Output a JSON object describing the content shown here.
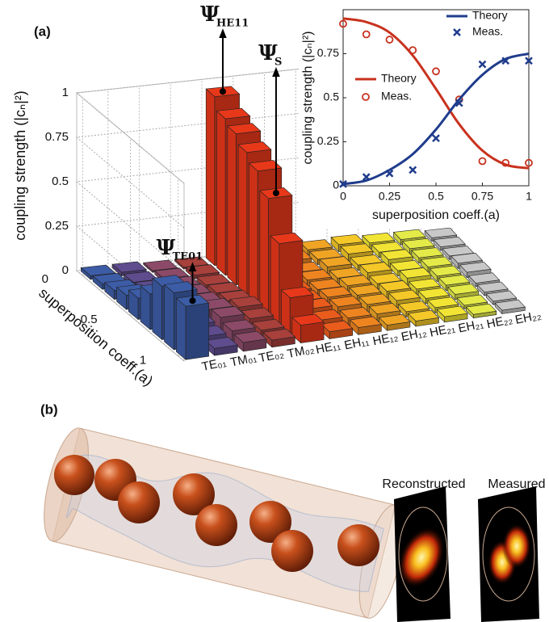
{
  "chart_data": [
    {
      "type": "bar3d",
      "panel_label": "(a)",
      "categories": [
        "TE₀₁",
        "TM₀₁",
        "TE₀₂",
        "TM₀₂",
        "HE₁₁",
        "EH₁₁",
        "HE₁₂",
        "EH₁₂",
        "HE₂₁",
        "EH₂₁",
        "HE₂₂",
        "EH₂₂"
      ],
      "colors": [
        "#3c5ca6",
        "#5e4c8e",
        "#8c4a68",
        "#a8403c",
        "#e8381a",
        "#ea5c1c",
        "#ee8420",
        "#f0a424",
        "#f4c828",
        "#f2e434",
        "#e4ea48",
        "#c8c8c8"
      ],
      "y": [
        0,
        0.125,
        0.25,
        0.375,
        0.5,
        0.625,
        0.75,
        0.875,
        1
      ],
      "values": [
        [
          0.02,
          0.02,
          0.01,
          0.01,
          0.95,
          0.03,
          0.04,
          0.03,
          0.04,
          0.03,
          0.03,
          0.02
        ],
        [
          0.03,
          0.02,
          0.02,
          0.02,
          0.88,
          0.04,
          0.04,
          0.03,
          0.04,
          0.03,
          0.03,
          0.02
        ],
        [
          0.05,
          0.03,
          0.03,
          0.02,
          0.85,
          0.04,
          0.03,
          0.04,
          0.03,
          0.04,
          0.03,
          0.02
        ],
        [
          0.08,
          0.03,
          0.04,
          0.03,
          0.8,
          0.04,
          0.04,
          0.03,
          0.04,
          0.03,
          0.03,
          0.03
        ],
        [
          0.12,
          0.04,
          0.05,
          0.04,
          0.75,
          0.05,
          0.04,
          0.04,
          0.03,
          0.04,
          0.03,
          0.03
        ],
        [
          0.2,
          0.05,
          0.07,
          0.06,
          0.65,
          0.05,
          0.05,
          0.04,
          0.04,
          0.03,
          0.03,
          0.02
        ],
        [
          0.3,
          0.06,
          0.08,
          0.05,
          0.45,
          0.06,
          0.05,
          0.04,
          0.04,
          0.03,
          0.03,
          0.02
        ],
        [
          0.32,
          0.05,
          0.06,
          0.04,
          0.2,
          0.05,
          0.04,
          0.04,
          0.03,
          0.03,
          0.02,
          0.02
        ],
        [
          0.3,
          0.04,
          0.05,
          0.04,
          0.1,
          0.04,
          0.04,
          0.03,
          0.03,
          0.03,
          0.02,
          0.02
        ]
      ],
      "zlim": [
        0,
        1
      ],
      "zticks": [
        0,
        0.25,
        0.5,
        0.75,
        1
      ],
      "ylim": [
        0,
        1
      ],
      "yticks": [
        0,
        0.5,
        1
      ],
      "zlabel": "coupling strength (|cₙ|²)",
      "ylabel": "superposition coeff.(a)",
      "annotations": [
        {
          "text": "Ψ",
          "sub": "HE11"
        },
        {
          "text": "Ψ",
          "sub": "S"
        },
        {
          "text": "Ψ",
          "sub": "TE01"
        }
      ],
      "grid": true
    },
    {
      "type": "line",
      "x": [
        0,
        0.125,
        0.25,
        0.375,
        0.5,
        0.625,
        0.75,
        0.875,
        1
      ],
      "series": [
        {
          "name": "Theory",
          "color": "#c8321e",
          "values": [
            0.95,
            0.93,
            0.87,
            0.74,
            0.55,
            0.35,
            0.2,
            0.12,
            0.1
          ]
        },
        {
          "name": "Meas.",
          "color": "#c8321e",
          "marker": "circle",
          "values": [
            0.92,
            0.86,
            0.83,
            0.77,
            0.65,
            0.49,
            0.14,
            0.13,
            0.13
          ]
        },
        {
          "name": "Theory",
          "color": "#1f3c8c",
          "values": [
            0.01,
            0.03,
            0.09,
            0.18,
            0.32,
            0.49,
            0.63,
            0.72,
            0.75
          ]
        },
        {
          "name": "Meas.",
          "color": "#1f3c8c",
          "marker": "x",
          "values": [
            0.01,
            0.05,
            0.07,
            0.09,
            0.27,
            0.47,
            0.69,
            0.71,
            0.71
          ]
        }
      ],
      "xlim": [
        0,
        1
      ],
      "ylim": [
        0,
        1
      ],
      "xticks": [
        0,
        0.25,
        0.5,
        0.75,
        1
      ],
      "yticks": [
        0,
        0.25,
        0.5,
        0.75
      ],
      "xlabel": "superposition coeff.(a)",
      "ylabel": "coupling strength (|cₙ|²)"
    }
  ],
  "panel_b": {
    "label": "(b)",
    "images": [
      "Reconstructed",
      "Measured"
    ]
  }
}
